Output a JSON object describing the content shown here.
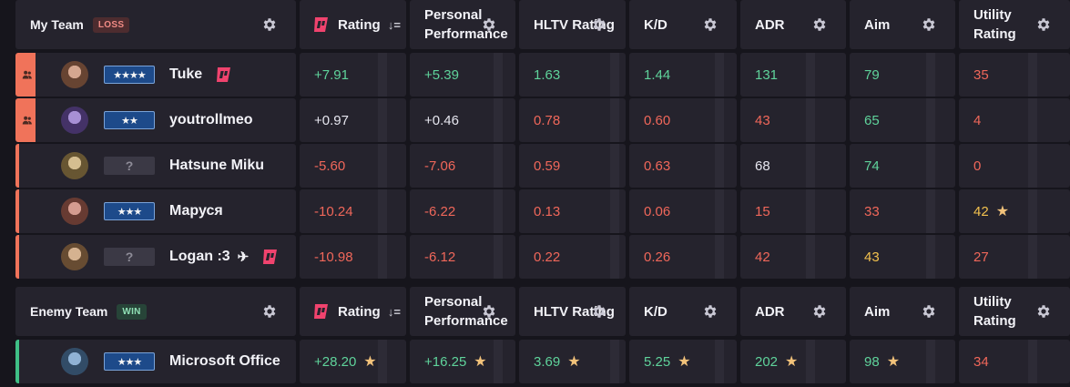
{
  "headers": {
    "rating": "Rating",
    "personal": "Personal Performance",
    "hltv": "HLTV Rating",
    "kd": "K/D",
    "adr": "ADR",
    "aim": "Aim",
    "utility": "Utility Rating",
    "sort_indicator": "↓="
  },
  "colors": {
    "green": "#5fd39b",
    "red": "#f0675a",
    "yellow": "#f2c14e",
    "loss_accent": "#f0735a",
    "win_accent": "#3fbf86",
    "leetify_pink": "#f0436e"
  },
  "my_team": {
    "title": "My Team",
    "result": "LOSS",
    "players": [
      {
        "name": "Tuke",
        "rank": "★★★★",
        "party": true,
        "has_logo": true,
        "extra": "",
        "stats": {
          "rating": "+7.91",
          "personal": "+5.39",
          "hltv": "1.63",
          "kd": "1.44",
          "adr": "131",
          "aim": "79",
          "utility": "35"
        },
        "colors": {
          "rating": "green",
          "personal": "green",
          "hltv": "green",
          "kd": "green",
          "adr": "green",
          "aim": "green",
          "utility": "red"
        }
      },
      {
        "name": "youtrollmeo",
        "rank": "★★",
        "party": true,
        "has_logo": false,
        "extra": "",
        "stats": {
          "rating": "+0.97",
          "personal": "+0.46",
          "hltv": "0.78",
          "kd": "0.60",
          "adr": "43",
          "aim": "65",
          "utility": "4"
        },
        "colors": {
          "rating": "white",
          "personal": "white",
          "hltv": "red",
          "kd": "red",
          "adr": "red",
          "aim": "green",
          "utility": "red"
        }
      },
      {
        "name": "Hatsune Miku",
        "rank": "?",
        "party": false,
        "has_logo": false,
        "extra": "",
        "stats": {
          "rating": "-5.60",
          "personal": "-7.06",
          "hltv": "0.59",
          "kd": "0.63",
          "adr": "68",
          "aim": "74",
          "utility": "0"
        },
        "colors": {
          "rating": "red",
          "personal": "red",
          "hltv": "red",
          "kd": "red",
          "adr": "white",
          "aim": "green",
          "utility": "red"
        }
      },
      {
        "name": "Маруся",
        "rank": "★★★",
        "party": false,
        "has_logo": false,
        "extra": "",
        "stats": {
          "rating": "-10.24",
          "personal": "-6.22",
          "hltv": "0.13",
          "kd": "0.06",
          "adr": "15",
          "aim": "33",
          "utility": "42"
        },
        "colors": {
          "rating": "red",
          "personal": "red",
          "hltv": "red",
          "kd": "red",
          "adr": "red",
          "aim": "red",
          "utility": "yellow"
        },
        "stars": {
          "utility": true
        }
      },
      {
        "name": "Logan :3",
        "rank": "?",
        "party": false,
        "has_logo": true,
        "extra": "✈",
        "stats": {
          "rating": "-10.98",
          "personal": "-6.12",
          "hltv": "0.22",
          "kd": "0.26",
          "adr": "42",
          "aim": "43",
          "utility": "27"
        },
        "colors": {
          "rating": "red",
          "personal": "red",
          "hltv": "red",
          "kd": "red",
          "adr": "red",
          "aim": "yellow",
          "utility": "red"
        }
      }
    ]
  },
  "enemy_team": {
    "title": "Enemy Team",
    "result": "WIN",
    "players": [
      {
        "name": "Microsoft Office",
        "rank": "★★★",
        "party": false,
        "has_logo": false,
        "extra": "",
        "stats": {
          "rating": "+28.20",
          "personal": "+16.25",
          "hltv": "3.69",
          "kd": "5.25",
          "adr": "202",
          "aim": "98",
          "utility": "34"
        },
        "colors": {
          "rating": "green",
          "personal": "green",
          "hltv": "green",
          "kd": "green",
          "adr": "green",
          "aim": "green",
          "utility": "red"
        },
        "stars": {
          "rating": true,
          "personal": true,
          "hltv": true,
          "kd": true,
          "adr": true,
          "aim": true
        }
      }
    ]
  }
}
